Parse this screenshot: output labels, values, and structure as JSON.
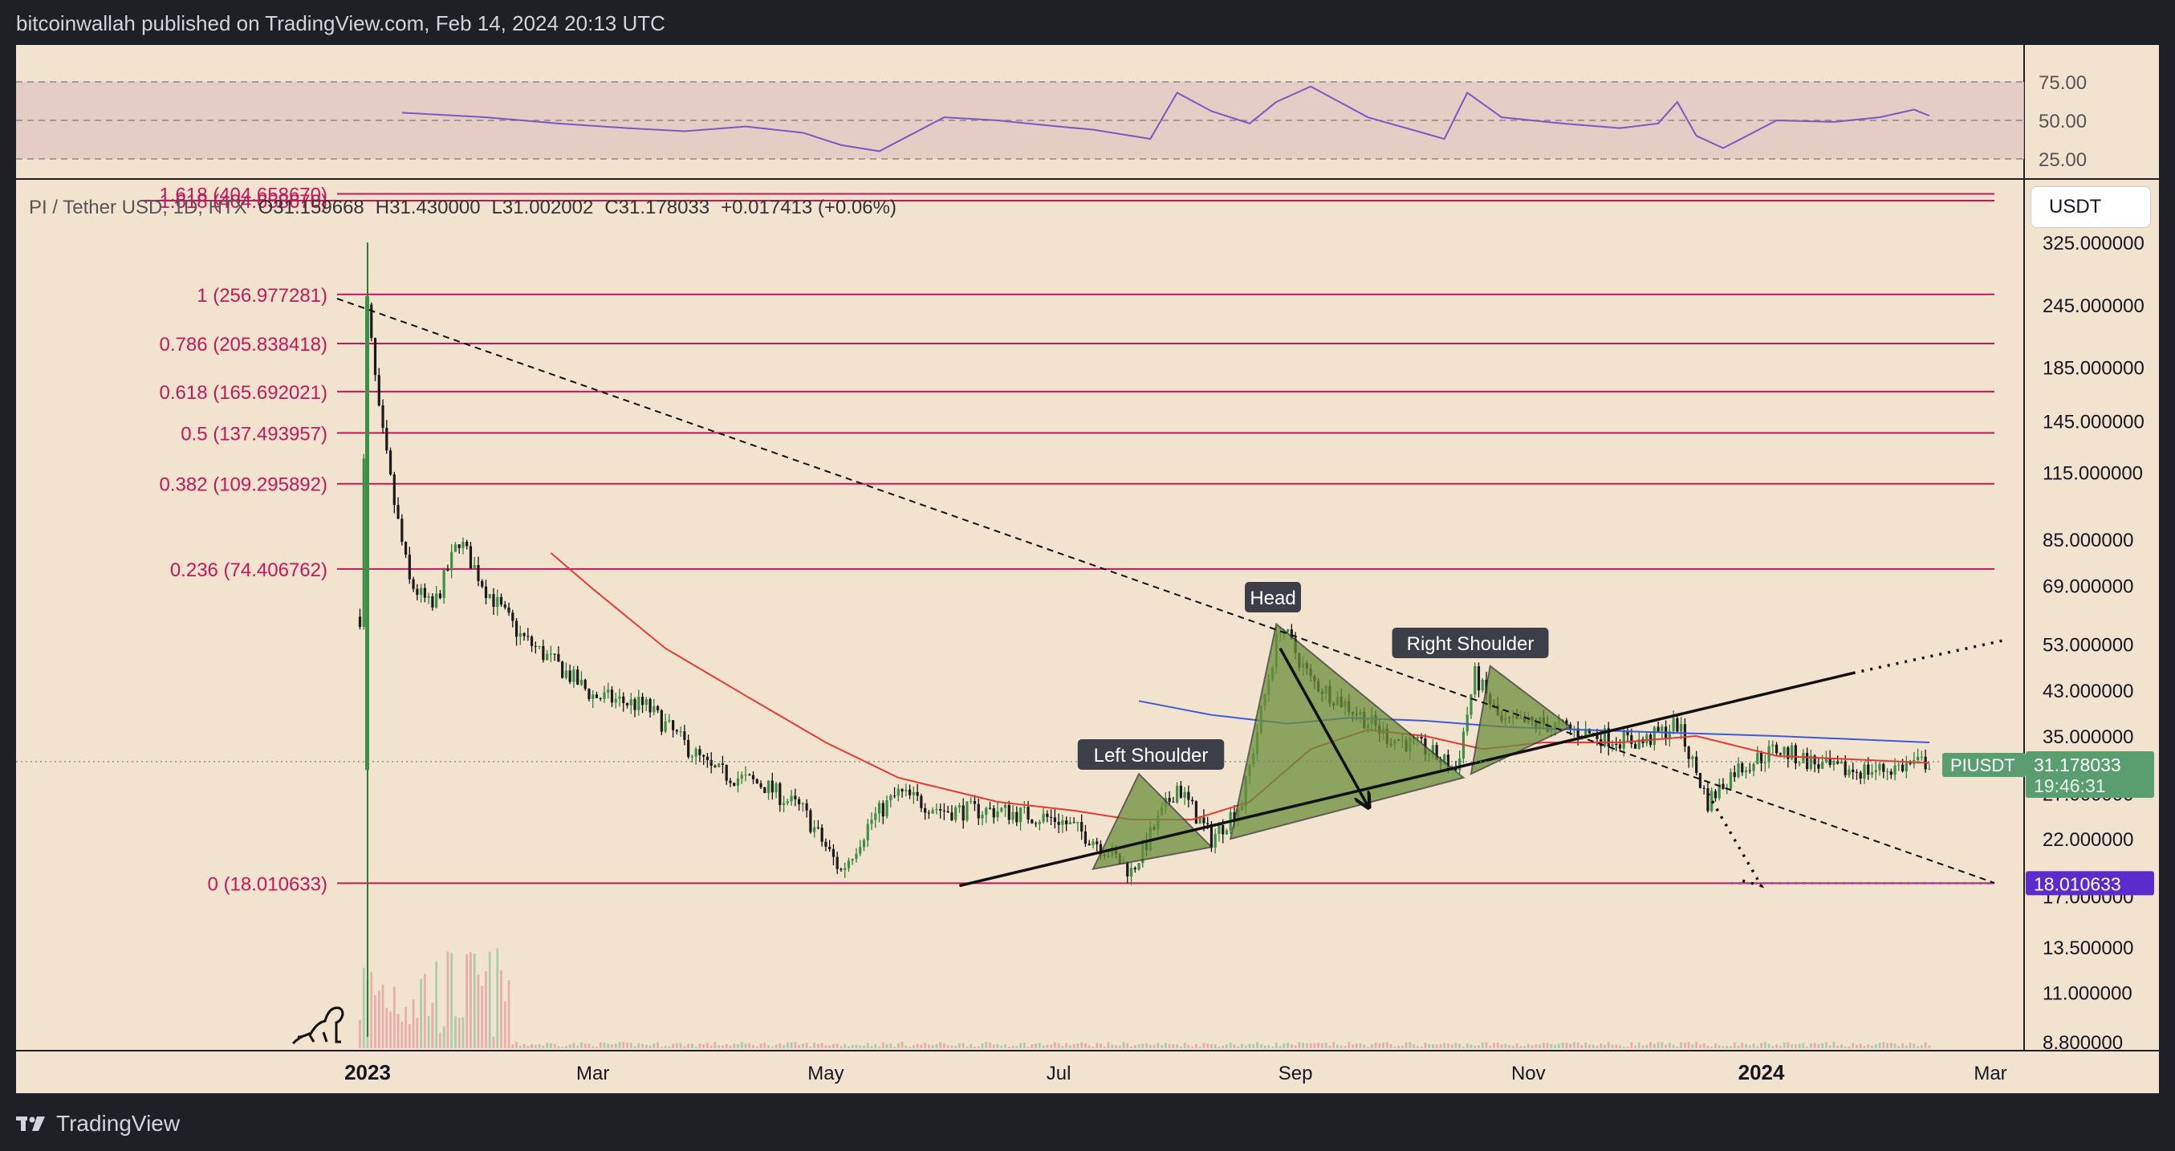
{
  "header": {
    "published": "bitcoinwallah published on TradingView.com, Feb 14, 2024 20:13 UTC"
  },
  "footer": {
    "brand": "TradingView",
    "logo_icon": "tradingview-logo-icon"
  },
  "ohlc": {
    "symbol": "PI / Tether USD, 1D, HTX",
    "open": "O31.159668",
    "high": "H31.430000",
    "low": "L31.002002",
    "close": "C31.178033",
    "change": "+0.017413 (+0.06%)"
  },
  "currency_button": "USDT",
  "colors": {
    "background": "#f2e3cf",
    "frame": "#1e2026",
    "fib": "#c2185b",
    "rsi": "#7e57c2",
    "ma_red": "#e53935",
    "ma_blue": "#3b5bdb",
    "pattern_fill": "#6b8f3c",
    "up": "#2e7d32",
    "down": "#111111",
    "price_tag": "#5a9e6f",
    "low_tag": "#5b2ccc"
  },
  "rsi": {
    "levels": [
      "75.00",
      "50.00",
      "25.00"
    ]
  },
  "chart_data": {
    "type": "line",
    "title": "PI / Tether USD, 1D, HTX",
    "y_scale": "log",
    "y_range": [
      8.0,
      420
    ],
    "x_range": [
      "2022-12-20",
      "2024-03-05"
    ],
    "y_ticks": [
      "325.000000",
      "245.000000",
      "185.000000",
      "145.000000",
      "115.000000",
      "85.000000",
      "69.000000",
      "53.000000",
      "43.000000",
      "35.000000",
      "27.000000",
      "22.000000",
      "17.000000",
      "13.500000",
      "11.000000",
      "8.800000"
    ],
    "x_ticks": [
      "2023",
      "Mar",
      "May",
      "Jul",
      "Sep",
      "Nov",
      "2024",
      "Mar"
    ],
    "fib_levels": [
      {
        "label": "1.618 (404.658670)",
        "value": 404.65867
      },
      {
        "label": "1 (256.977281)",
        "value": 256.977281
      },
      {
        "label": "0.786 (205.838418)",
        "value": 205.838418
      },
      {
        "label": "0.618 (165.692021)",
        "value": 165.692021
      },
      {
        "label": "0.5 (137.493957)",
        "value": 137.493957
      },
      {
        "label": "0.382 (109.295892)",
        "value": 109.295892
      },
      {
        "label": "0.236 (74.406762)",
        "value": 74.406762
      },
      {
        "label": "0 (18.010633)",
        "value": 18.010633
      }
    ],
    "price_series": {
      "x": [
        "2022-12-30",
        "2023-01-01",
        "2023-01-04",
        "2023-01-08",
        "2023-01-12",
        "2023-01-18",
        "2023-01-25",
        "2023-02-01",
        "2023-02-10",
        "2023-02-20",
        "2023-03-01",
        "2023-03-15",
        "2023-04-01",
        "2023-04-15",
        "2023-04-25",
        "2023-05-05",
        "2023-05-13",
        "2023-05-20",
        "2023-06-01",
        "2023-06-15",
        "2023-07-01",
        "2023-07-10",
        "2023-07-20",
        "2023-08-01",
        "2023-08-10",
        "2023-08-18",
        "2023-08-28",
        "2023-09-05",
        "2023-09-15",
        "2023-09-25",
        "2023-10-05",
        "2023-10-13",
        "2023-10-18",
        "2023-10-25",
        "2023-11-05",
        "2023-11-20",
        "2023-12-01",
        "2023-12-10",
        "2023-12-18",
        "2023-12-25",
        "2024-01-05",
        "2024-01-20",
        "2024-02-01",
        "2024-02-14"
      ],
      "y": [
        60,
        240,
        150,
        100,
        70,
        62,
        85,
        68,
        55,
        48,
        42,
        40,
        30,
        28,
        25,
        19,
        24,
        27,
        25,
        25,
        24,
        22,
        19,
        28,
        22,
        26,
        58,
        45,
        40,
        35,
        33,
        30,
        46,
        37,
        37,
        35,
        34,
        37,
        26,
        30,
        33,
        30,
        30,
        31.18
      ]
    },
    "series": [
      {
        "name": "",
        "type": "ma",
        "x": [
          "2023-02-18",
          "2023-03-01",
          "2023-03-20",
          "2023-04-10",
          "2023-05-01",
          "2023-05-20",
          "2023-06-15",
          "2023-07-05",
          "2023-07-20",
          "2023-08-05",
          "2023-08-20",
          "2023-09-05",
          "2023-09-20",
          "2023-10-05",
          "2023-10-20",
          "2023-11-05",
          "2023-11-25",
          "2023-12-15",
          "2024-01-05",
          "2024-02-14"
        ],
        "y": [
          80,
          68,
          52,
          42,
          34,
          29,
          26,
          25,
          24,
          24,
          26,
          33,
          36,
          35,
          33,
          34,
          34,
          35,
          32,
          31
        ]
      },
      {
        "name": "",
        "type": "ma",
        "x": [
          "2023-07-22",
          "2023-08-10",
          "2023-08-30",
          "2023-09-15",
          "2023-10-05",
          "2023-10-25",
          "2023-11-15",
          "2023-12-10",
          "2024-01-05",
          "2024-02-14"
        ],
        "y": [
          41,
          38.5,
          37,
          38,
          37.5,
          36.5,
          36,
          35.5,
          35,
          34
        ]
      }
    ],
    "annotations": {
      "left_shoulder": "Left Shoulder",
      "head": "Head",
      "right_shoulder": "Right Shoulder"
    },
    "price_tag": {
      "symbol": "PIUSDT",
      "value": "31.178033",
      "countdown": "19:46:31"
    },
    "low_tag": "18.010633",
    "rsi_series": {
      "x": [
        "2023-01-10",
        "2023-02-01",
        "2023-02-20",
        "2023-03-10",
        "2023-03-25",
        "2023-04-10",
        "2023-04-25",
        "2023-05-05",
        "2023-05-15",
        "2023-06-01",
        "2023-06-15",
        "2023-07-01",
        "2023-07-10",
        "2023-07-25",
        "2023-08-01",
        "2023-08-10",
        "2023-08-20",
        "2023-08-27",
        "2023-09-05",
        "2023-09-20",
        "2023-10-10",
        "2023-10-16",
        "2023-10-25",
        "2023-11-10",
        "2023-11-25",
        "2023-12-05",
        "2023-12-10",
        "2023-12-15",
        "2023-12-22",
        "2024-01-05",
        "2024-01-20",
        "2024-02-01",
        "2024-02-10",
        "2024-02-14"
      ],
      "y": [
        55,
        52,
        48,
        45,
        43,
        46,
        42,
        34,
        30,
        52,
        50,
        46,
        44,
        38,
        68,
        56,
        48,
        62,
        72,
        52,
        38,
        68,
        52,
        48,
        45,
        48,
        62,
        40,
        32,
        50,
        49,
        52,
        57,
        53
      ]
    }
  }
}
